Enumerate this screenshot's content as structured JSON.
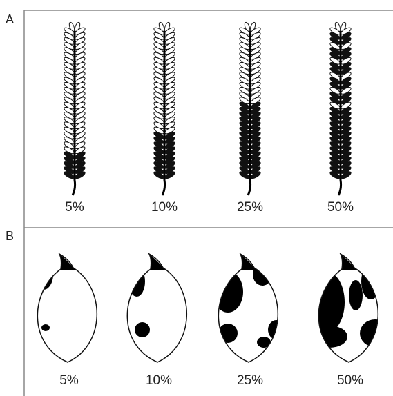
{
  "panels": [
    {
      "label": "A",
      "items": [
        {
          "label": "5%"
        },
        {
          "label": "10%"
        },
        {
          "label": "25%"
        },
        {
          "label": "50%"
        }
      ]
    },
    {
      "label": "B",
      "items": [
        {
          "label": "5%"
        },
        {
          "label": "10%"
        },
        {
          "label": "25%"
        },
        {
          "label": "50%"
        }
      ]
    }
  ]
}
